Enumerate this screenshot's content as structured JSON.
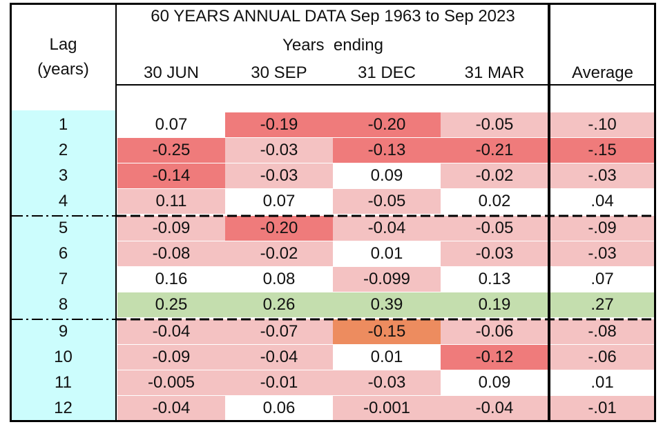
{
  "header": {
    "title": "60 YEARS ANNUAL DATA Sep 1963 to Sep 2023",
    "subtitle": "Years  ending",
    "lag_label_1": "Lag",
    "lag_label_2": "(years)",
    "columns": [
      "30 JUN",
      "30 SEP",
      "31 DEC",
      "31 MAR"
    ],
    "average_label": "Average"
  },
  "colors": {
    "lag_cell": "#ccfdfd",
    "light_red": "#f4c2c2",
    "red": "#ef7b7b",
    "orange": "#ed8c5f",
    "green": "#c4deae",
    "white": "#ffffff"
  },
  "rows": [
    {
      "lag": "1",
      "values": [
        "0.07",
        "-0.19",
        "-0.20",
        "-0.05"
      ],
      "avg": "-.10",
      "shades": [
        "white",
        "red",
        "red",
        "light_red"
      ],
      "avg_shade": "light_red"
    },
    {
      "lag": "2",
      "values": [
        "-0.25",
        "-0.03",
        "-0.13",
        "-0.21"
      ],
      "avg": "-.15",
      "shades": [
        "red",
        "light_red",
        "red",
        "red"
      ],
      "avg_shade": "red"
    },
    {
      "lag": "3",
      "values": [
        "-0.14",
        "-0.03",
        "0.09",
        "-0.02"
      ],
      "avg": "-.03",
      "shades": [
        "red",
        "light_red",
        "white",
        "light_red"
      ],
      "avg_shade": "light_red"
    },
    {
      "lag": "4",
      "values": [
        "0.11",
        "0.07",
        "-0.05",
        "0.02"
      ],
      "avg": ".04",
      "shades": [
        "light_red",
        "white",
        "light_red",
        "white"
      ],
      "avg_shade": "white"
    },
    {
      "lag": "5",
      "values": [
        "-0.09",
        "-0.20",
        "-0.04",
        "-0.05"
      ],
      "avg": "-.09",
      "shades": [
        "light_red",
        "red",
        "light_red",
        "light_red"
      ],
      "avg_shade": "light_red"
    },
    {
      "lag": "6",
      "values": [
        "-0.08",
        "-0.02",
        "0.01",
        "-0.03"
      ],
      "avg": "-.03",
      "shades": [
        "light_red",
        "light_red",
        "white",
        "light_red"
      ],
      "avg_shade": "light_red"
    },
    {
      "lag": "7",
      "values": [
        "0.16",
        "0.08",
        "-0.099",
        "0.13"
      ],
      "avg": ".07",
      "shades": [
        "white",
        "white",
        "light_red",
        "white"
      ],
      "avg_shade": "white"
    },
    {
      "lag": "8",
      "values": [
        "0.25",
        "0.26",
        "0.39",
        "0.19"
      ],
      "avg": ".27",
      "shades": [
        "green",
        "green",
        "green",
        "green"
      ],
      "avg_shade": "green"
    },
    {
      "lag": "9",
      "values": [
        "-0.04",
        "-0.07",
        "-0.15",
        "-0.06"
      ],
      "avg": "-.08",
      "shades": [
        "light_red",
        "light_red",
        "orange",
        "light_red"
      ],
      "avg_shade": "light_red"
    },
    {
      "lag": "10",
      "values": [
        "-0.09",
        "-0.04",
        "0.01",
        "-0.12"
      ],
      "avg": "-.06",
      "shades": [
        "light_red",
        "light_red",
        "white",
        "red"
      ],
      "avg_shade": "light_red"
    },
    {
      "lag": "11",
      "values": [
        "-0.005",
        "-0.01",
        "-0.03",
        "0.09"
      ],
      "avg": ".01",
      "shades": [
        "light_red",
        "light_red",
        "light_red",
        "white"
      ],
      "avg_shade": "white"
    },
    {
      "lag": "12",
      "values": [
        "-0.04",
        "0.06",
        "-0.001",
        "-0.04"
      ],
      "avg": "-.01",
      "shades": [
        "light_red",
        "white",
        "light_red",
        "light_red"
      ],
      "avg_shade": "light_red"
    }
  ]
}
